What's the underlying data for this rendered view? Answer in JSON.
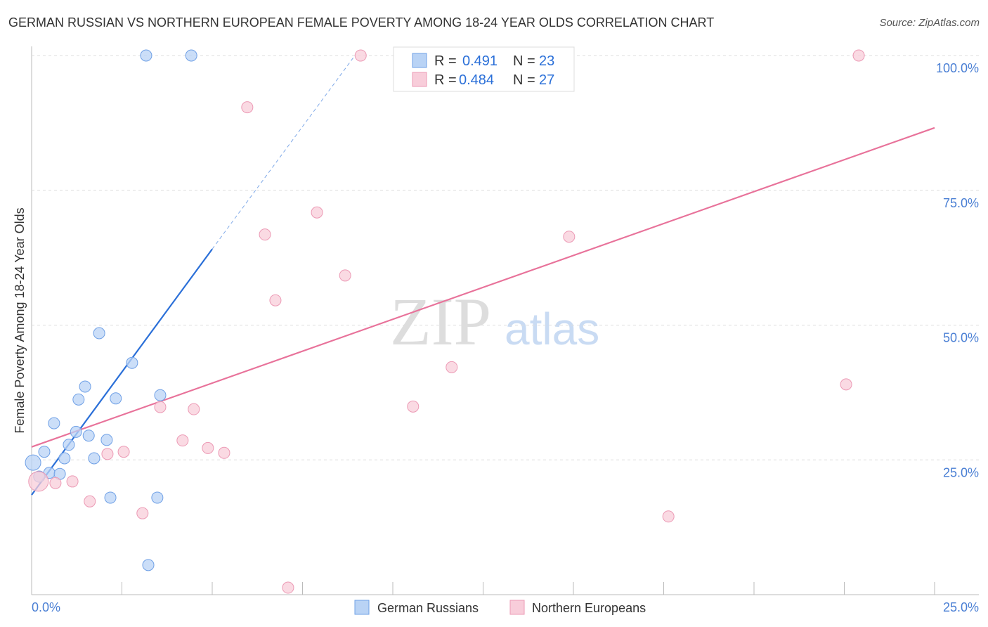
{
  "title": "GERMAN RUSSIAN VS NORTHERN EUROPEAN FEMALE POVERTY AMONG 18-24 YEAR OLDS CORRELATION CHART",
  "source": "Source: ZipAtlas.com",
  "watermark": {
    "zip": "ZIP",
    "atlas": "atlas"
  },
  "chart_data": {
    "type": "scatter",
    "title": "GERMAN RUSSIAN VS NORTHERN EUROPEAN FEMALE POVERTY AMONG 18-24 YEAR OLDS CORRELATION CHART",
    "xlabel": "",
    "ylabel": "Female Poverty Among 18-24 Year Olds",
    "xlim": [
      0,
      25
    ],
    "ylim": [
      0,
      100
    ],
    "x_ticks": [
      "0.0%",
      "25.0%"
    ],
    "y_ticks": [
      {
        "v": 100,
        "label": "100.0%"
      },
      {
        "v": 75,
        "label": "75.0%"
      },
      {
        "v": 50,
        "label": "50.0%"
      },
      {
        "v": 25,
        "label": "25.0%"
      }
    ],
    "legend_stats": [
      {
        "r_label": "R = ",
        "r": "0.491",
        "n_label": "N = ",
        "n": "23"
      },
      {
        "r_label": "R = ",
        "r": "0.484",
        "n_label": "N = ",
        "n": "27"
      }
    ],
    "series": [
      {
        "name": "German Russians",
        "color": "#6fa0e6",
        "fill": "#b9d3f5",
        "line_color": "#2a6fd8",
        "trend": {
          "x0": 0,
          "y0": 18.5,
          "x1": 5.0,
          "y1": 64.1,
          "dash_x1": 8.95,
          "dash_y1": 100
        },
        "points": [
          [
            3.17,
            100
          ],
          [
            4.42,
            100
          ],
          [
            1.87,
            48.5
          ],
          [
            2.78,
            43.0
          ],
          [
            1.48,
            38.6
          ],
          [
            1.3,
            36.2
          ],
          [
            2.33,
            36.4
          ],
          [
            3.56,
            37.0
          ],
          [
            0.62,
            31.8
          ],
          [
            1.23,
            30.2
          ],
          [
            1.58,
            29.5
          ],
          [
            1.03,
            27.8
          ],
          [
            2.08,
            28.7
          ],
          [
            0.35,
            26.5
          ],
          [
            0.91,
            25.3
          ],
          [
            1.73,
            25.3
          ],
          [
            0.04,
            24.5
          ],
          [
            0.49,
            22.6
          ],
          [
            0.78,
            22.4
          ],
          [
            0.21,
            21.9
          ],
          [
            2.18,
            18.0
          ],
          [
            3.48,
            18.0
          ],
          [
            3.23,
            5.5
          ]
        ]
      },
      {
        "name": "Northern Europeans",
        "color": "#ec9ab5",
        "fill": "#f8cdda",
        "line_color": "#e8729a",
        "trend": {
          "x0": 0,
          "y0": 27.4,
          "x1": 25,
          "y1": 86.6
        },
        "points": [
          [
            9.11,
            100
          ],
          [
            12.26,
            100
          ],
          [
            14.28,
            100
          ],
          [
            22.9,
            100
          ],
          [
            5.97,
            90.4
          ],
          [
            7.9,
            70.9
          ],
          [
            6.46,
            66.8
          ],
          [
            14.88,
            66.4
          ],
          [
            8.68,
            59.2
          ],
          [
            6.75,
            54.6
          ],
          [
            11.63,
            42.2
          ],
          [
            22.55,
            39.0
          ],
          [
            10.56,
            34.9
          ],
          [
            3.56,
            34.8
          ],
          [
            4.49,
            34.4
          ],
          [
            4.18,
            28.6
          ],
          [
            4.88,
            27.2
          ],
          [
            5.33,
            26.3
          ],
          [
            2.1,
            26.1
          ],
          [
            2.55,
            26.5
          ],
          [
            0.66,
            20.7
          ],
          [
            1.13,
            21.0
          ],
          [
            0.19,
            21.0
          ],
          [
            1.61,
            17.3
          ],
          [
            3.07,
            15.1
          ],
          [
            17.63,
            14.5
          ],
          [
            7.1,
            1.3
          ]
        ]
      }
    ]
  }
}
